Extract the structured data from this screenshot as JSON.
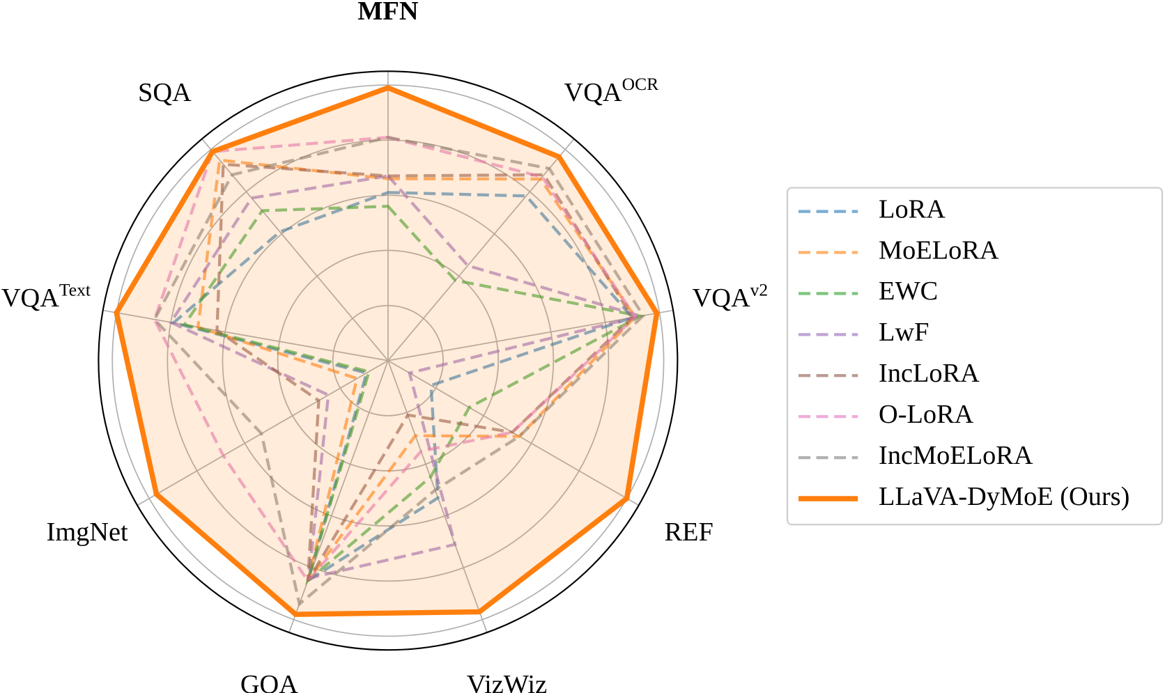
{
  "chart_data": {
    "type": "radar",
    "categories": [
      "MFN",
      "VQA",
      "VQA",
      "REF",
      "VizWiz",
      "GQA",
      "ImgNet",
      "VQA",
      "SQA"
    ],
    "category_superscripts": [
      null,
      "OCR",
      "v2",
      null,
      null,
      null,
      null,
      "Text",
      null
    ],
    "rlim": [
      0,
      1.05
    ],
    "rticks": [
      0.2,
      0.4,
      0.6,
      0.8,
      1.0
    ],
    "grid": true,
    "series": [
      {
        "name": "LoRA",
        "color": "#1f77b4",
        "linestyle": "dashed",
        "values": [
          0.61,
          0.78,
          0.9,
          0.18,
          0.53,
          0.85,
          0.09,
          0.79,
          0.61
        ]
      },
      {
        "name": "MoELoRA",
        "color": "#ff7f0e",
        "linestyle": "dashed",
        "values": [
          0.66,
          0.86,
          0.91,
          0.55,
          0.29,
          0.85,
          0.13,
          0.7,
          0.95
        ]
      },
      {
        "name": "EWC",
        "color": "#2ca02c",
        "linestyle": "dashed",
        "values": [
          0.56,
          0.38,
          0.93,
          0.34,
          0.45,
          0.85,
          0.08,
          0.75,
          0.71
        ]
      },
      {
        "name": "LwF",
        "color": "#9467bd",
        "linestyle": "dashed",
        "values": [
          0.67,
          0.45,
          0.93,
          0.09,
          0.71,
          0.84,
          0.25,
          0.8,
          0.77
        ]
      },
      {
        "name": "IncLoRA",
        "color": "#8c564b",
        "linestyle": "dashed",
        "values": [
          0.67,
          0.88,
          0.9,
          0.52,
          0.21,
          0.85,
          0.29,
          0.63,
          0.93
        ]
      },
      {
        "name": "O-LoRA",
        "color": "#e377c2",
        "linestyle": "dashed",
        "values": [
          0.81,
          0.87,
          0.91,
          0.52,
          0.35,
          0.85,
          0.69,
          0.86,
          0.99
        ]
      },
      {
        "name": "IncMoELoRA",
        "color": "#7f7f7f",
        "linestyle": "dashed",
        "values": [
          0.81,
          0.91,
          0.94,
          0.55,
          0.5,
          0.94,
          0.53,
          0.86,
          0.88
        ]
      },
      {
        "name": "LLaVA-DyMoE (Ours)",
        "color": "#ff7f0e",
        "linestyle": "solid",
        "fill": true,
        "values": [
          0.99,
          0.965,
          0.99,
          1.0,
          0.97,
          0.98,
          0.97,
          1.0,
          0.99
        ]
      }
    ]
  }
}
